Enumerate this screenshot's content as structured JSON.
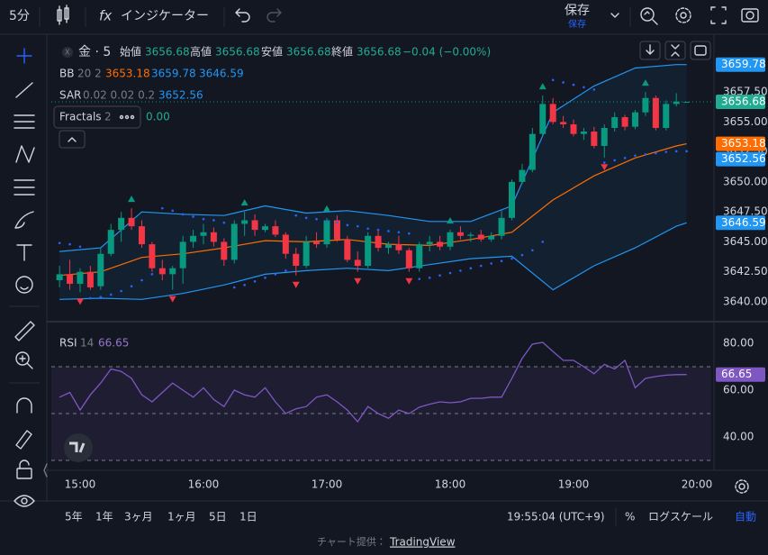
{
  "toolbar": {
    "interval": "5分",
    "indicators": "インジケーター",
    "save": "保存",
    "save_sub": "保存"
  },
  "legend": {
    "symbol": "金 · 5",
    "open_label": "始値",
    "open": 3656.68,
    "high_label": "高値",
    "high": 3656.68,
    "low_label": "安値",
    "low": 3656.68,
    "close_label": "終値",
    "close": 3656.68,
    "change": "−0.04 (−0.00%)",
    "bb_name": "BB",
    "bb_params": "20 2",
    "bb_middle": 3653.18,
    "bb_upper": 3659.78,
    "bb_lower": 3646.59,
    "sar_name": "SAR",
    "sar_params": "0.02 0.02 0.2",
    "sar_value": 3652.56,
    "fractals_name": "Fractals",
    "fractals_params": "2",
    "fractals_value": "0.00",
    "rsi_name": "RSI",
    "rsi_params": "14",
    "rsi_value": 66.65
  },
  "chart_data": [
    {
      "type": "candlestick",
      "x": [
        "14:50",
        "14:55",
        "15:00",
        "15:05",
        "15:10",
        "15:15",
        "15:20",
        "15:25",
        "15:30",
        "15:35",
        "15:40",
        "15:45",
        "15:50",
        "15:55",
        "16:00",
        "16:05",
        "16:10",
        "16:15",
        "16:20",
        "16:25",
        "16:30",
        "16:35",
        "16:40",
        "16:45",
        "16:50",
        "16:55",
        "17:00",
        "17:05",
        "17:10",
        "17:15",
        "17:20",
        "17:25",
        "17:30",
        "17:35",
        "17:40",
        "17:45",
        "17:50",
        "17:55",
        "18:00",
        "18:05",
        "18:10",
        "18:15",
        "18:20",
        "18:25",
        "18:30",
        "18:35",
        "18:40",
        "18:45",
        "18:50",
        "18:55",
        "19:00",
        "19:05",
        "19:10",
        "19:15",
        "19:20",
        "19:25",
        "19:30",
        "19:35",
        "19:40",
        "19:45",
        "19:50",
        "19:55"
      ],
      "open": [
        3641.8,
        3642.3,
        3641.5,
        3642.5,
        3641.3,
        3644,
        3646,
        3647,
        3646.3,
        3644.8,
        3642.8,
        3642.3,
        3642.8,
        3645,
        3645.5,
        3645.8,
        3645,
        3643.5,
        3646.5,
        3646.8,
        3646,
        3646.3,
        3645.6,
        3644,
        3643,
        3645,
        3644.8,
        3646.8,
        3645.2,
        3643.5,
        3643,
        3645.5,
        3644.5,
        3644.8,
        3644.3,
        3642.8,
        3644.8,
        3645,
        3644.6,
        3645.8,
        3645.5,
        3645.6,
        3645.2,
        3645.5,
        3647,
        3650,
        3651,
        3654,
        3656.5,
        3655,
        3654.8,
        3654,
        3654.2,
        3653,
        3654.5,
        3655.4,
        3654.6,
        3655.8,
        3657,
        3654.5,
        3656.5,
        3656.68
      ],
      "high": [
        3643,
        3643.5,
        3642.8,
        3643,
        3644.5,
        3646.5,
        3647.5,
        3647.8,
        3646.8,
        3645,
        3643.5,
        3643,
        3645.5,
        3646,
        3646.5,
        3646.2,
        3645.3,
        3646.8,
        3647.5,
        3647.3,
        3646.5,
        3646.8,
        3645.8,
        3644.5,
        3645.5,
        3645.8,
        3647,
        3647.2,
        3645.5,
        3644.2,
        3645.8,
        3646,
        3645,
        3645.5,
        3644.5,
        3645,
        3645.5,
        3645.5,
        3646,
        3646.3,
        3645.8,
        3646,
        3645.8,
        3647.6,
        3650.2,
        3651.5,
        3654.5,
        3657.2,
        3657,
        3655.5,
        3655.2,
        3654.5,
        3654.6,
        3654.8,
        3655.8,
        3655.6,
        3656,
        3657.5,
        3657.2,
        3656.8,
        3657.4,
        3656.68
      ],
      "low": [
        3641.2,
        3641,
        3640.8,
        3641,
        3641,
        3643.8,
        3645,
        3646,
        3644.5,
        3642.5,
        3641.8,
        3641,
        3641.5,
        3644.5,
        3644.8,
        3644.6,
        3643,
        3643.2,
        3645.5,
        3645.5,
        3645.8,
        3645.4,
        3643.6,
        3642.2,
        3642.8,
        3644.5,
        3644.5,
        3645,
        3643.3,
        3642.5,
        3642.8,
        3644.2,
        3644,
        3644,
        3642.5,
        3642.5,
        3644.2,
        3644.3,
        3644.3,
        3645.2,
        3645,
        3645,
        3645,
        3645.2,
        3646.8,
        3649.8,
        3650.8,
        3653.8,
        3654.8,
        3654.5,
        3653.8,
        3653.5,
        3652.8,
        3652,
        3654.2,
        3654.3,
        3654.4,
        3655.5,
        3654.3,
        3654.3,
        3656.3,
        3656.68
      ],
      "close": [
        3642.3,
        3641.5,
        3642.5,
        3641.2,
        3644,
        3646,
        3647,
        3646.3,
        3644.8,
        3642.8,
        3642.3,
        3642.8,
        3645,
        3645.5,
        3645.8,
        3645,
        3643.5,
        3646.5,
        3646.8,
        3646,
        3646.3,
        3645.6,
        3644,
        3643,
        3645,
        3644.8,
        3646.8,
        3645.2,
        3643.5,
        3643,
        3645.5,
        3644.5,
        3644.8,
        3644.3,
        3642.8,
        3644.8,
        3645,
        3644.6,
        3645.8,
        3645.5,
        3645.6,
        3645.2,
        3645.5,
        3647,
        3650,
        3651,
        3654,
        3656.5,
        3655,
        3654.8,
        3654,
        3654.2,
        3653,
        3654.5,
        3655.4,
        3654.6,
        3655.8,
        3657,
        3654.5,
        3656.5,
        3656.7,
        3656.68
      ],
      "up_color": "#089981",
      "down_color": "#f23645",
      "bands": {
        "x": [
          "14:50",
          "15:10",
          "15:30",
          "15:50",
          "16:10",
          "16:30",
          "16:50",
          "17:10",
          "17:30",
          "17:50",
          "18:10",
          "18:30",
          "18:50",
          "19:10",
          "19:30",
          "19:50",
          "19:55"
        ],
        "upper": [
          3644.2,
          3644.5,
          3647.5,
          3647.3,
          3647.2,
          3648,
          3647.4,
          3647.6,
          3647.2,
          3646.7,
          3646.7,
          3648,
          3655.8,
          3658,
          3659.5,
          3659.78,
          3659.78
        ],
        "middle": [
          3642.2,
          3642.5,
          3643.7,
          3644,
          3644.5,
          3645.1,
          3645,
          3645.2,
          3644.8,
          3644.7,
          3645.2,
          3645.8,
          3648.5,
          3650.5,
          3652,
          3653,
          3653.18
        ],
        "lower": [
          3640.2,
          3640.3,
          3640.2,
          3640.7,
          3641.4,
          3642.3,
          3642.6,
          3642.8,
          3642.6,
          3643.1,
          3643.6,
          3643.8,
          3641,
          3643,
          3644.5,
          3646.3,
          3646.59
        ],
        "band_color": "#2196f3",
        "middle_color": "#ff6d00",
        "fill": "rgba(33,150,243,0.07)"
      },
      "sar": [
        3644.9,
        3644.8,
        3644.6,
        3640.3,
        3640.4,
        3640.6,
        3640.9,
        3641.3,
        3641.8,
        3642.3,
        3647.8,
        3647.6,
        3647.3,
        3647.1,
        3646.9,
        3646.8,
        3646.6,
        3641.2,
        3641.4,
        3641.7,
        3642,
        3642.3,
        3642.6,
        3647.2,
        3647,
        3646.9,
        3646.7,
        3646.6,
        3646.4,
        3646.3,
        3646.1,
        3646,
        3645.9,
        3645.8,
        3645.7,
        3641.9,
        3642,
        3642.2,
        3642.4,
        3642.6,
        3642.8,
        3643,
        3643.2,
        3643.4,
        3643.6,
        3643.9,
        3644.3,
        3645,
        3658.5,
        3658.3,
        3658.1,
        3657.9,
        3657.7,
        3651.6,
        3651.8,
        3652,
        3652.2,
        3652.3,
        3652.4,
        3652.5,
        3652.56,
        3652.56
      ],
      "sar_color": "#2962ff",
      "fractals_up": [
        "15:25",
        "16:20",
        "17:00",
        "18:00",
        "18:45",
        "19:35"
      ],
      "fractals_down": [
        "15:00",
        "15:45",
        "16:45",
        "17:15",
        "17:40",
        "19:15"
      ],
      "xlim": [
        "14:46",
        "20:07"
      ],
      "xticks": [
        "15:00",
        "16:00",
        "17:00",
        "18:00",
        "19:00",
        "20:00"
      ],
      "ylim": [
        3638.72,
        3661.79
      ],
      "yticks": [
        {
          "value": 3640,
          "label": "3640.00"
        },
        {
          "value": 3642.5,
          "label": "3642.50"
        },
        {
          "value": 3645,
          "label": "3645.00"
        },
        {
          "value": 3647.5,
          "label": "3647.50"
        },
        {
          "value": 3650,
          "label": "3650.00"
        },
        {
          "value": 3652.5,
          "label": "3652.50"
        },
        {
          "value": 3655,
          "label": "3655.00"
        },
        {
          "value": 3657.5,
          "label": "3657.50"
        }
      ],
      "grid": false
    },
    {
      "type": "line",
      "x": [
        "14:50",
        "14:55",
        "15:00",
        "15:05",
        "15:10",
        "15:15",
        "15:20",
        "15:25",
        "15:30",
        "15:35",
        "15:40",
        "15:45",
        "15:50",
        "15:55",
        "16:00",
        "16:05",
        "16:10",
        "16:15",
        "16:20",
        "16:25",
        "16:30",
        "16:35",
        "16:40",
        "16:45",
        "16:50",
        "16:55",
        "17:00",
        "17:05",
        "17:10",
        "17:15",
        "17:20",
        "17:25",
        "17:30",
        "17:35",
        "17:40",
        "17:45",
        "17:50",
        "17:55",
        "18:00",
        "18:05",
        "18:10",
        "18:15",
        "18:20",
        "18:25",
        "18:30",
        "18:35",
        "18:40",
        "18:45",
        "18:50",
        "18:55",
        "19:00",
        "19:05",
        "19:10",
        "19:15",
        "19:20",
        "19:25",
        "19:30",
        "19:35",
        "19:40",
        "19:45",
        "19:50",
        "19:55"
      ],
      "series": [
        {
          "name": "RSI",
          "color": "#7e57c2",
          "values": [
            57,
            59,
            51.5,
            58,
            63,
            69,
            68,
            65,
            58,
            55,
            59,
            63,
            60,
            57,
            61,
            56,
            53,
            60,
            58,
            57,
            61,
            55,
            50,
            52,
            53,
            57,
            58,
            55,
            51.5,
            46.5,
            53,
            50,
            48,
            51.5,
            50,
            52.7,
            54,
            55,
            54.6,
            55,
            56.5,
            56.5,
            57,
            57,
            65,
            73.5,
            79.6,
            80.4,
            76.5,
            72.7,
            72.7,
            70,
            67,
            71,
            69,
            72.7,
            61,
            65,
            65.8,
            66.4,
            66.6,
            66.65
          ]
        }
      ],
      "levels": [
        70,
        50,
        30
      ],
      "fill": "rgba(126,87,194,0.1)",
      "ylim": [
        28.46,
        86.15
      ],
      "yticks": [
        {
          "value": 80,
          "label": "80.00"
        },
        {
          "value": 60,
          "label": "60.00"
        },
        {
          "value": 40,
          "label": "40.00"
        }
      ]
    }
  ],
  "ranges": [
    "5年",
    "1年",
    "3ヶ月",
    "1ヶ月",
    "5日",
    "1日"
  ],
  "status": {
    "time": "19:55:04 (UTC+9)",
    "percent": "%",
    "log": "ログスケール",
    "auto": "自動"
  },
  "footer": {
    "prefix": "チャート提供：",
    "link": "TradingView"
  }
}
